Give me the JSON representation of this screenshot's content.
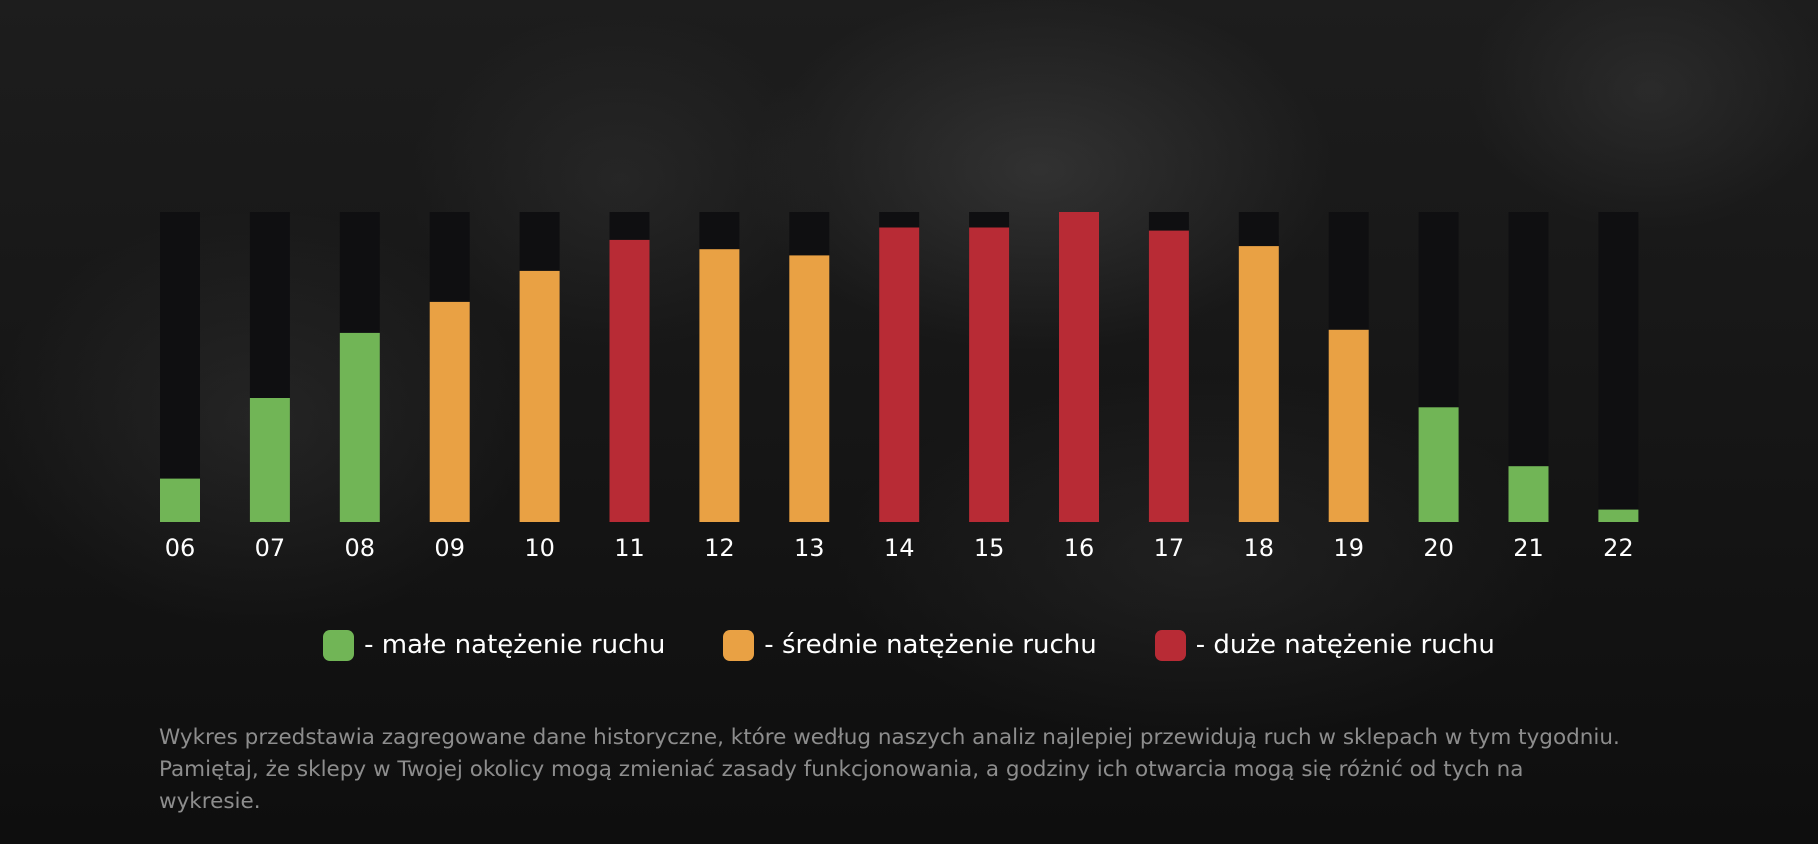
{
  "chart_data": {
    "type": "bar",
    "categories": [
      "06",
      "07",
      "08",
      "09",
      "10",
      "11",
      "12",
      "13",
      "14",
      "15",
      "16",
      "17",
      "18",
      "19",
      "20",
      "21",
      "22"
    ],
    "values": [
      14,
      40,
      61,
      71,
      81,
      91,
      88,
      86,
      95,
      95,
      100,
      94,
      89,
      62,
      37,
      18,
      4
    ],
    "levels": [
      "low",
      "low",
      "low",
      "medium",
      "medium",
      "high",
      "medium",
      "medium",
      "high",
      "high",
      "high",
      "high",
      "medium",
      "medium",
      "low",
      "low",
      "low"
    ],
    "ylim": [
      0,
      100
    ],
    "grid": false,
    "legend_position": "bottom"
  },
  "colors": {
    "low": "#71b556",
    "medium": "#e9a144",
    "high": "#b82b35",
    "track": "#0f0f11",
    "tick_label": "#ffffff"
  },
  "legend": [
    {
      "level": "low",
      "label": "- małe natężenie ruchu"
    },
    {
      "level": "medium",
      "label": "- średnie natężenie ruchu"
    },
    {
      "level": "high",
      "label": "- duże natężenie ruchu"
    }
  ],
  "note": "Wykres przedstawia zagregowane dane historyczne, które według naszych analiz najlepiej przewidują ruch w sklepach w tym tygodniu. Pamiętaj, że sklepy w Twojej okolicy mogą zmieniać zasady funkcjonowania, a godziny ich otwarcia mogą się różnić od tych na wykresie."
}
